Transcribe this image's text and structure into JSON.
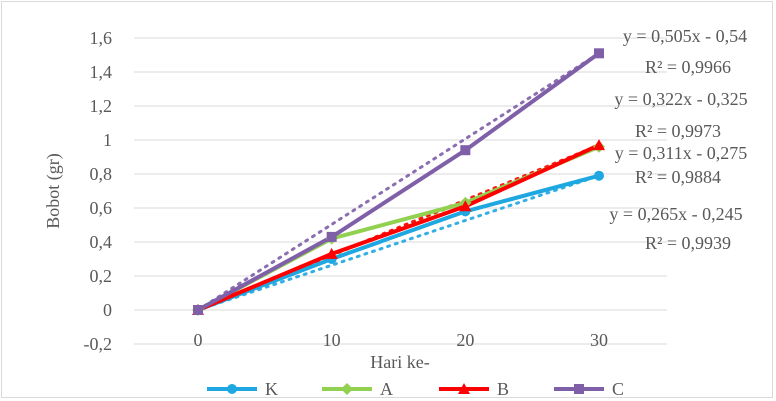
{
  "chart_data": {
    "type": "line",
    "xlabel": "Hari ke-",
    "ylabel": "Bobot (gr)",
    "x": [
      0,
      10,
      20,
      30
    ],
    "ylim": [
      -0.2,
      1.6
    ],
    "yticks": [
      "-0,2",
      "0",
      "0,2",
      "0,4",
      "0,6",
      "0,8",
      "1",
      "1,2",
      "1,4",
      "1,6"
    ],
    "ytick_values": [
      -0.2,
      0,
      0.2,
      0.4,
      0.6,
      0.8,
      1.0,
      1.2,
      1.4,
      1.6
    ],
    "xticks": [
      "0",
      "10",
      "20",
      "30"
    ],
    "grid": "horizontal",
    "legend_position": "bottom",
    "series": [
      {
        "name": "K",
        "color": "#1ea7e1",
        "marker": "circle",
        "values": [
          0,
          0.3,
          0.58,
          0.79
        ],
        "trend": {
          "slope": 0.265,
          "intercept": -0.245,
          "equation": "y = 0,265x - 0,245",
          "r2": "R² = 0,9939"
        }
      },
      {
        "name": "A",
        "color": "#92d050",
        "marker": "diamond",
        "values": [
          0,
          0.42,
          0.63,
          0.96
        ],
        "trend": {
          "slope": 0.311,
          "intercept": -0.275,
          "equation": "y = 0,311x - 0,275",
          "r2": "R² = 0,9884"
        }
      },
      {
        "name": "B",
        "color": "#ff0000",
        "marker": "triangle",
        "values": [
          0,
          0.33,
          0.61,
          0.97
        ],
        "trend": {
          "slope": 0.322,
          "intercept": -0.325,
          "equation": "y = 0,322x - 0,325",
          "r2": "R² = 0,9973"
        }
      },
      {
        "name": "C",
        "color": "#7f5fa8",
        "marker": "square",
        "values": [
          0,
          0.43,
          0.94,
          1.51
        ],
        "trend": {
          "slope": 0.505,
          "intercept": -0.54,
          "equation": "y = 0,505x - 0,54",
          "r2": "R² = 0,9966"
        }
      }
    ],
    "trendline_labels_order": [
      "C",
      "B",
      "A",
      "K"
    ]
  }
}
